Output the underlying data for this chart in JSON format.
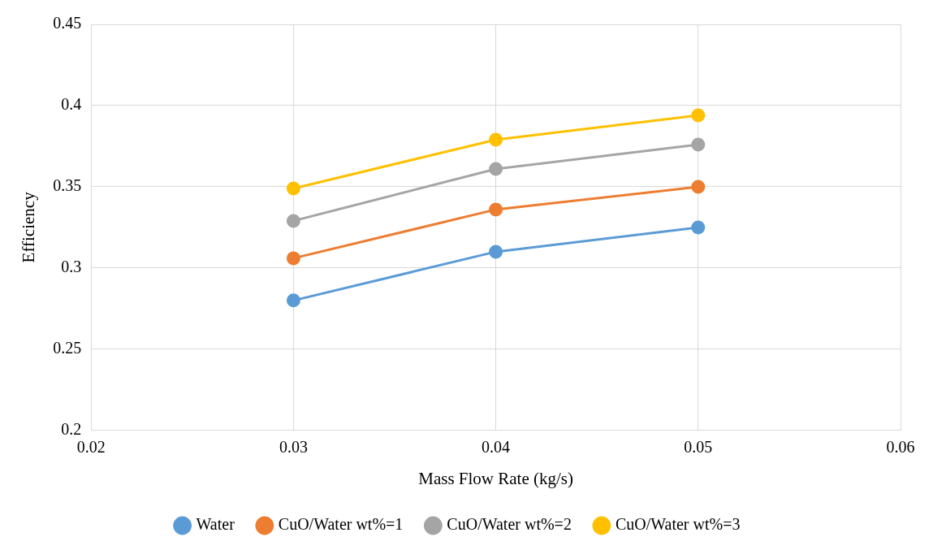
{
  "chart_data": {
    "type": "line",
    "xlabel": "Mass Flow Rate (kg/s)",
    "ylabel": "Efficiency",
    "x": [
      0.03,
      0.04,
      0.05
    ],
    "series": [
      {
        "name": "Water",
        "color": "#5b9bd5",
        "values": [
          0.28,
          0.31,
          0.325
        ]
      },
      {
        "name": "CuO/Water wt%=1",
        "color": "#ed7d31",
        "values": [
          0.306,
          0.336,
          0.35
        ]
      },
      {
        "name": "CuO/Water wt%=2",
        "color": "#a5a5a5",
        "values": [
          0.329,
          0.361,
          0.376
        ]
      },
      {
        "name": "CuO/Water wt%=3",
        "color": "#ffc000",
        "values": [
          0.349,
          0.379,
          0.394
        ]
      }
    ],
    "xlim": [
      0.02,
      0.06
    ],
    "xticks": [
      0.02,
      0.03,
      0.04,
      0.05,
      0.06
    ],
    "ylim": [
      0.2,
      0.45
    ],
    "yticks": [
      0.2,
      0.25,
      0.3,
      0.35,
      0.4,
      0.45
    ],
    "grid": true,
    "legend": "bottom",
    "marker": "circle",
    "line_style": "solid"
  }
}
